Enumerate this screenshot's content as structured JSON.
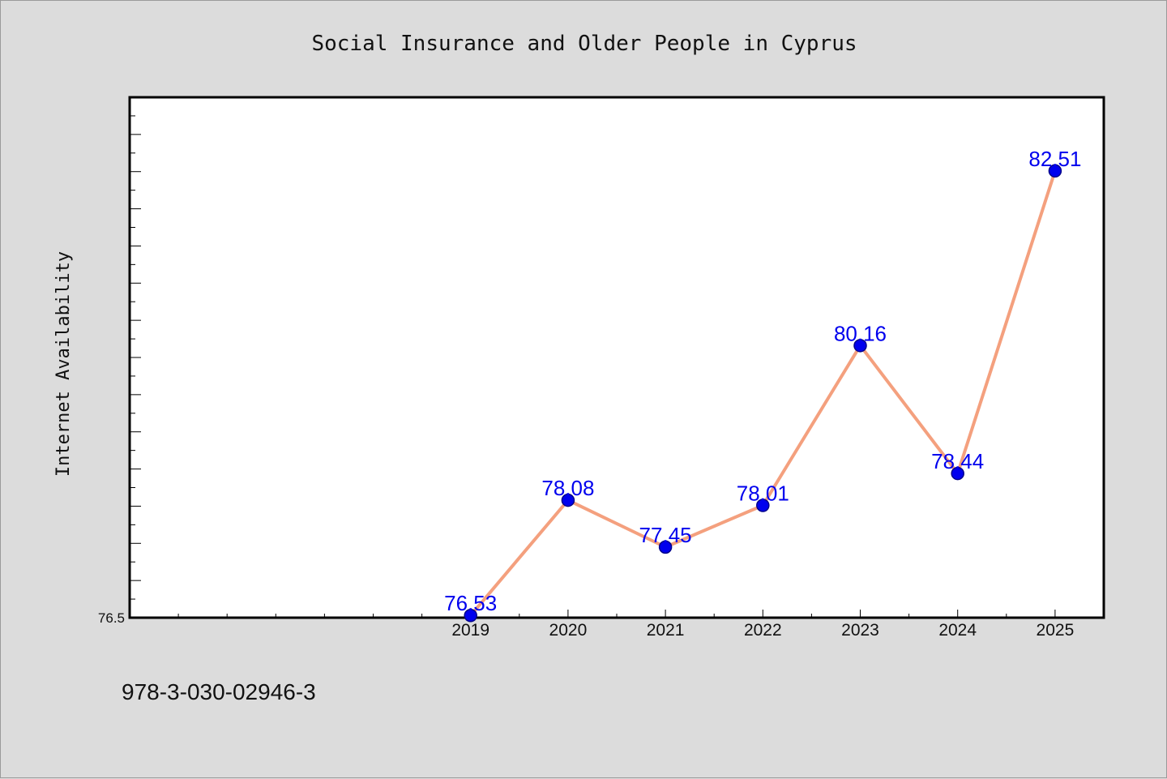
{
  "chart_data": {
    "type": "line",
    "title": "Social Insurance and Older People in Cyprus",
    "xlabel": "",
    "ylabel": "Internet Availability",
    "categories": [
      "2019",
      "2020",
      "2021",
      "2022",
      "2023",
      "2024",
      "2025"
    ],
    "series": [
      {
        "values": [
          76.53,
          78.08,
          77.45,
          78.01,
          80.16,
          78.44,
          82.51
        ]
      }
    ],
    "data_labels": [
      "76.53",
      "78.08",
      "77.45",
      "78.01",
      "80.16",
      "78.44",
      "82.51"
    ],
    "x_range": [
      2015.5,
      2025.5
    ],
    "ylim": [
      76.5,
      83.5
    ],
    "y_tick_labels": [
      "76.5"
    ],
    "grid": false,
    "legend": "none",
    "colors": {
      "line": "#f4a07e",
      "marker_fill": "#0000ee",
      "marker_stroke": "#00008b",
      "data_label": "#0000ee",
      "plot_background": "#ffffff",
      "figure_background": "#dcdcdc"
    }
  },
  "footer": {
    "isbn": "978-3-030-02946-3"
  }
}
